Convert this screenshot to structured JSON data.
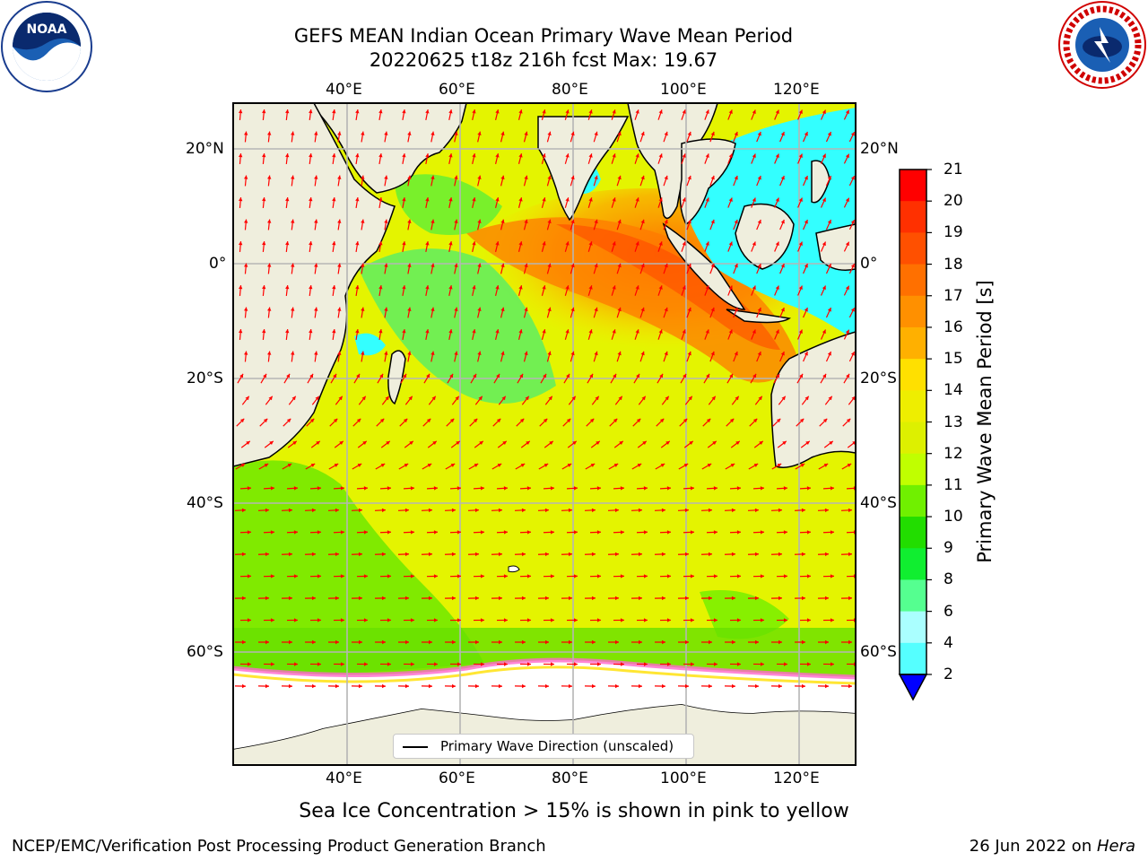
{
  "title": {
    "line1": "GEFS MEAN Indian Ocean Primary Wave Mean Period",
    "line2": "20220625 t18z 216h fcst   Max: 19.67"
  },
  "logos": {
    "left": "noaa-logo",
    "right": "national-weather-service-logo",
    "left_text": "NOAA",
    "right_text": "NATIONAL WEATHER SERVICE"
  },
  "map": {
    "lon_ticks_top": [
      "40°E",
      "60°E",
      "80°E",
      "100°E",
      "120°E"
    ],
    "lon_ticks_bottom": [
      "40°E",
      "60°E",
      "80°E",
      "100°E",
      "120°E"
    ],
    "lat_ticks_left": [
      "20°N",
      "0°",
      "20°S",
      "40°S",
      "60°S"
    ],
    "lat_ticks_right": [
      "20°N",
      "0°",
      "20°S",
      "40°S",
      "60°S"
    ],
    "land_color": "#efeedd",
    "ice_color": "#ffffff",
    "vector_color": "#ff0000"
  },
  "legend": {
    "label": "Primary Wave Direction (unscaled)"
  },
  "colorbar": {
    "title": "Primary Wave Mean Period [s]",
    "ticks": [
      "21",
      "20",
      "19",
      "18",
      "17",
      "16",
      "15",
      "14",
      "13",
      "12",
      "11",
      "10",
      "9",
      "8",
      "6",
      "4",
      "2"
    ],
    "colors": [
      "#ff0000",
      "#ff3000",
      "#ff5000",
      "#ff7000",
      "#ff9000",
      "#ffb000",
      "#ffe000",
      "#eeee00",
      "#ddf000",
      "#c0ff00",
      "#70f000",
      "#22dd00",
      "#10ee30",
      "#55ff90",
      "#aaffff",
      "#55ffff",
      "#00ffff",
      "#0099ff"
    ],
    "extend_color": "#0000ff"
  },
  "footer": {
    "sea_ice_note": "Sea Ice Concentration > 15% is shown in pink to yellow",
    "credit": "NCEP/EMC/Verification Post Processing Product Generation Branch",
    "date_prefix": "26 Jun 2022 on ",
    "machine": "Hera"
  }
}
